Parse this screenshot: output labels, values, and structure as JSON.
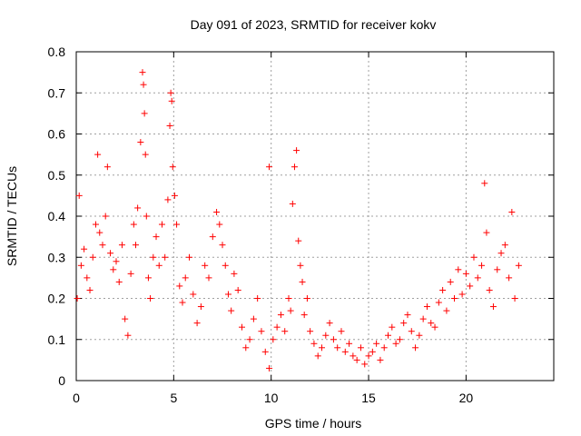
{
  "chart_data": {
    "type": "scatter",
    "title": "Day 091 of 2023, SRMTID for receiver kokv",
    "xlabel": "GPS time / hours",
    "ylabel": "SRMTID / TECUs",
    "xlim": [
      0,
      24.5
    ],
    "ylim": [
      0,
      0.8
    ],
    "xticks": [
      0,
      5,
      10,
      15,
      20
    ],
    "xtick_labels": [
      "0",
      "5",
      "10",
      "15",
      "20"
    ],
    "yticks": [
      0,
      0.1,
      0.2,
      0.3,
      0.4,
      0.5,
      0.6,
      0.7,
      0.8
    ],
    "ytick_labels": [
      "0",
      "0.1",
      "0.2",
      "0.3",
      "0.4",
      "0.5",
      "0.6",
      "0.7",
      "0.8"
    ],
    "grid": true,
    "marker": "plus",
    "color": "#ff0000",
    "series": [
      {
        "name": "SRMTID",
        "x": [
          0.05,
          0.15,
          0.25,
          0.4,
          0.55,
          0.7,
          0.85,
          1.0,
          1.1,
          1.2,
          1.35,
          1.5,
          1.6,
          1.75,
          1.9,
          2.05,
          2.2,
          2.35,
          2.5,
          2.65,
          2.8,
          2.95,
          3.05,
          3.15,
          3.3,
          3.4,
          3.45,
          3.5,
          3.55,
          3.6,
          3.7,
          3.8,
          3.95,
          4.1,
          4.25,
          4.4,
          4.55,
          4.7,
          4.8,
          4.85,
          4.9,
          4.95,
          5.05,
          5.15,
          5.3,
          5.45,
          5.6,
          5.8,
          6.0,
          6.2,
          6.4,
          6.6,
          6.8,
          7.0,
          7.2,
          7.35,
          7.5,
          7.65,
          7.8,
          7.95,
          8.1,
          8.3,
          8.5,
          8.7,
          8.9,
          9.1,
          9.3,
          9.5,
          9.7,
          9.9,
          10.1,
          10.3,
          10.5,
          10.7,
          10.9,
          11.0,
          11.1,
          11.2,
          11.3,
          11.4,
          11.5,
          11.6,
          11.7,
          11.85,
          12.0,
          12.2,
          12.4,
          12.6,
          12.8,
          13.0,
          13.2,
          13.4,
          13.6,
          13.8,
          14.0,
          14.2,
          14.4,
          14.6,
          14.8,
          15.0,
          15.2,
          15.4,
          15.6,
          15.8,
          16.0,
          16.2,
          16.4,
          16.6,
          16.8,
          17.0,
          17.2,
          17.4,
          17.6,
          17.8,
          18.0,
          18.2,
          18.4,
          18.6,
          18.8,
          19.0,
          19.2,
          19.4,
          19.6,
          19.8,
          20.0,
          20.2,
          20.4,
          20.6,
          20.8,
          20.95,
          21.05,
          21.2,
          21.4,
          21.6,
          21.8,
          22.0,
          22.2,
          22.35,
          22.5,
          22.7,
          9.9
        ],
        "y": [
          0.2,
          0.45,
          0.28,
          0.32,
          0.25,
          0.22,
          0.3,
          0.38,
          0.55,
          0.36,
          0.33,
          0.4,
          0.52,
          0.31,
          0.27,
          0.29,
          0.24,
          0.33,
          0.15,
          0.11,
          0.26,
          0.38,
          0.33,
          0.42,
          0.58,
          0.75,
          0.72,
          0.65,
          0.55,
          0.4,
          0.25,
          0.2,
          0.3,
          0.35,
          0.28,
          0.38,
          0.3,
          0.44,
          0.62,
          0.7,
          0.68,
          0.52,
          0.45,
          0.38,
          0.23,
          0.19,
          0.25,
          0.3,
          0.21,
          0.14,
          0.18,
          0.28,
          0.25,
          0.35,
          0.41,
          0.38,
          0.33,
          0.28,
          0.21,
          0.17,
          0.26,
          0.22,
          0.13,
          0.08,
          0.1,
          0.15,
          0.2,
          0.12,
          0.07,
          0.03,
          0.1,
          0.13,
          0.16,
          0.12,
          0.2,
          0.17,
          0.43,
          0.52,
          0.56,
          0.34,
          0.28,
          0.24,
          0.16,
          0.2,
          0.12,
          0.09,
          0.06,
          0.08,
          0.11,
          0.14,
          0.1,
          0.08,
          0.12,
          0.07,
          0.09,
          0.06,
          0.05,
          0.08,
          0.04,
          0.06,
          0.07,
          0.09,
          0.05,
          0.08,
          0.11,
          0.13,
          0.09,
          0.1,
          0.14,
          0.16,
          0.12,
          0.08,
          0.11,
          0.15,
          0.18,
          0.14,
          0.13,
          0.19,
          0.22,
          0.17,
          0.24,
          0.2,
          0.27,
          0.21,
          0.26,
          0.23,
          0.3,
          0.25,
          0.28,
          0.48,
          0.36,
          0.22,
          0.18,
          0.27,
          0.31,
          0.33,
          0.25,
          0.41,
          0.2,
          0.28,
          0.52
        ]
      }
    ]
  }
}
